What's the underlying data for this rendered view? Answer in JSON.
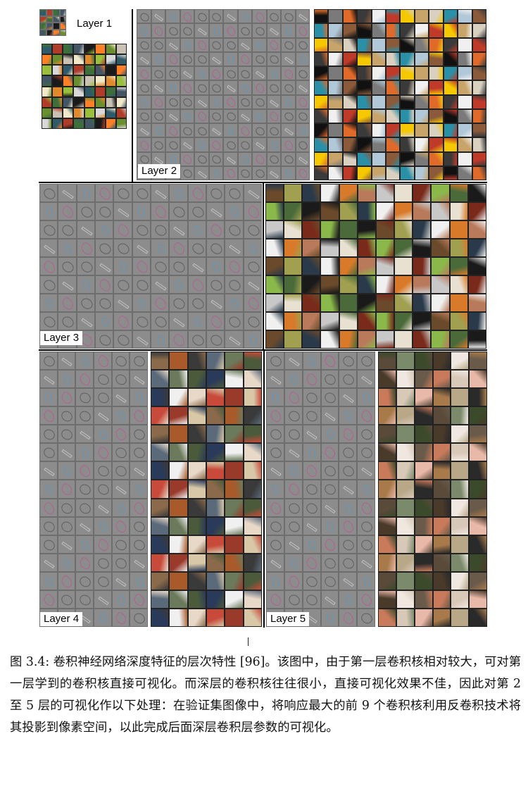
{
  "figure": {
    "layers": [
      {
        "id": "layer1",
        "label": "Layer 1"
      },
      {
        "id": "layer2",
        "label": "Layer 2"
      },
      {
        "id": "layer3",
        "label": "Layer 3"
      },
      {
        "id": "layer4",
        "label": "Layer 4"
      },
      {
        "id": "layer5",
        "label": "Layer 5"
      }
    ],
    "caption": "图 3.4: 卷积神经网络深度特征的层次特性 [96]。该图中，由于第一层卷积核相对较大，可对第一层学到的卷积核直接可视化。而深层的卷积核往往很小，直接可视化效果不佳，因此对第 2 至 5 层的可视化作以下处理：在验证集图像中，将响应最大的前 9 个卷积核利用反卷积技术将其投影到像素空间，以此完成后面深层卷积层参数的可视化。"
  },
  "palettes": {
    "layer1": [
      "#2f5a6a",
      "#c9c2b4",
      "#3c6f3a",
      "#e08a2c",
      "#1a1a1a",
      "#d8d8d8",
      "#6b8f2e",
      "#b03c2a",
      "#f0e8c8",
      "#445566",
      "#9abf3c",
      "#ff7f27"
    ],
    "layer2": [
      "#111111",
      "#c8a46a",
      "#e06a2a",
      "#2a90a8",
      "#f0f0f0",
      "#8a5a3a",
      "#f5c800",
      "#7a7a7a",
      "#d9d0c0",
      "#3a3a3a",
      "#b0c8d8",
      "#c03a2a"
    ],
    "layer3": [
      "#6a4a2a",
      "#e8e0d0",
      "#2a3a4a",
      "#8ab84a",
      "#d87a2a",
      "#1a1a1a",
      "#c8c8c8",
      "#a0a050",
      "#7a2a1a",
      "#f0f0f0",
      "#4a6a3a",
      "#b87a5a"
    ],
    "layer4": [
      "#8a6a4a",
      "#f0f0f0",
      "#3a3a3a",
      "#c84a3a",
      "#6a7a5a",
      "#d8c8a8",
      "#2a3a5a",
      "#a85a2a",
      "#e8d8c8",
      "#5a6a7a",
      "#9a3a2a",
      "#4a5a3a"
    ],
    "layer5": [
      "#5a4a3a",
      "#d8c8b8",
      "#3a4a2a",
      "#a87a4a",
      "#f0e8e0",
      "#2a2a2a",
      "#c87a5a",
      "#7a8a6a",
      "#e8b8a8",
      "#4a3a2a",
      "#b8a888",
      "#6a5a4a"
    ]
  }
}
